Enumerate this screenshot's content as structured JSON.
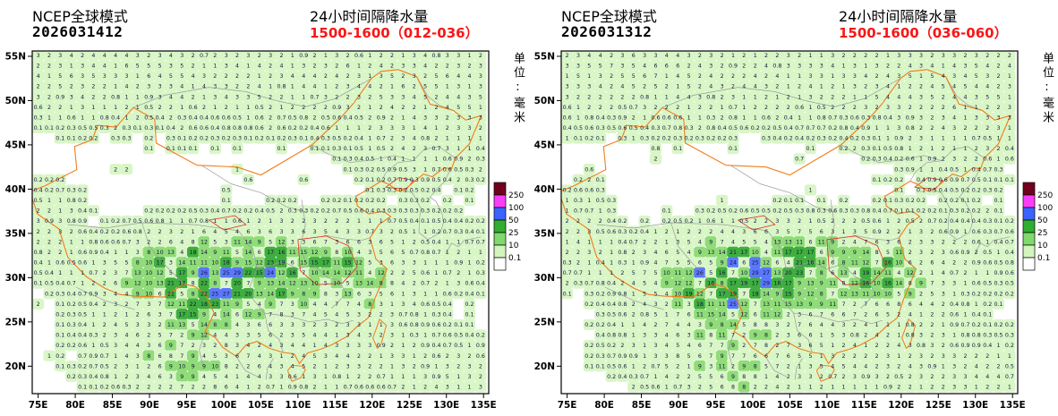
{
  "panels": [
    {
      "model": "NCEP全球模式",
      "init": "2026031412",
      "title": "24小时间隔降水量",
      "period": "1500-1600（012-036）",
      "unit": "单位:毫米"
    },
    {
      "model": "NCEP全球模式",
      "init": "2026031312",
      "title": "24小时间隔降水量",
      "period": "1500-1600（036-060）",
      "unit": "单位:毫米"
    }
  ],
  "axes": {
    "lat": [
      "55N",
      "50N",
      "45N",
      "40N",
      "35N",
      "30N",
      "25N",
      "20N"
    ],
    "lon": [
      "75E",
      "80E",
      "85E",
      "90E",
      "95E",
      "100E",
      "105E",
      "110E",
      "115E",
      "120E",
      "125E",
      "130E",
      "135E"
    ]
  },
  "colorbar": {
    "labels": [
      "250",
      "100",
      "50",
      "25",
      "10",
      "0.1"
    ],
    "colors": [
      "#70001d",
      "#f93ef9",
      "#3b64ff",
      "#2fae2f",
      "#7fd96d",
      "#d2f5bc",
      "#ffffff"
    ]
  },
  "chart_data": {
    "type": "heatmap",
    "title": "24小时间隔降水量",
    "unit": "毫米",
    "panels": [
      {
        "model": "NCEP全球模式",
        "init_time": "2026031412",
        "valid_period": "1500-1600（012-036）"
      },
      {
        "model": "NCEP全球模式",
        "init_time": "2026031312",
        "valid_period": "1500-1600（036-060）"
      }
    ],
    "x_axis": {
      "label": "longitude",
      "ticks": [
        "75E",
        "80E",
        "85E",
        "90E",
        "95E",
        "100E",
        "105E",
        "110E",
        "115E",
        "120E",
        "125E",
        "130E",
        "135E"
      ],
      "range": [
        74.2,
        135.7
      ]
    },
    "y_axis": {
      "label": "latitude",
      "ticks": [
        "55N",
        "50N",
        "45N",
        "40N",
        "35N",
        "30N",
        "25N",
        "20N"
      ],
      "range": [
        16.9,
        55.6
      ]
    },
    "colorbar_levels": [
      0.1,
      10,
      25,
      50,
      100,
      250
    ],
    "colorbar_colors_low_to_high": [
      "#ffffff",
      "#d2f5bc",
      "#7fd96d",
      "#2fae2f",
      "#3b64ff",
      "#f93ef9",
      "#70001d"
    ],
    "precip_pattern_summary": "Gridded 24h precipitation values (mm): light band across 48-55N, heavy band 26-34N from the Tibetan Plateau through the Yangtze valley with local maxima near 20-29 mm, scattered light rain 17-26N over south China and adjacent seas"
  }
}
